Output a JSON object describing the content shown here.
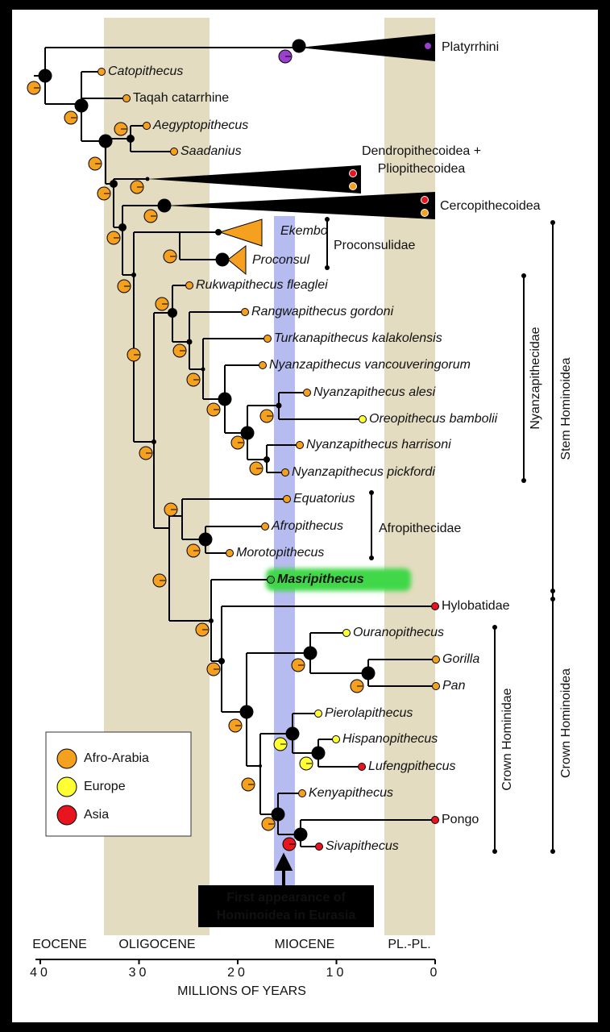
{
  "taxa": [
    "Platyrrhini",
    "Catopithecus",
    "Taqah catarrhine",
    "Aegyptopithecus",
    "Saadanius",
    "Dendropithecoidea +",
    "Pliopithecoidea",
    "Cercopithecoidea",
    "Ekembo",
    "Proconsul",
    "Rukwapithecus fleaglei",
    "Rangwapithecus gordoni",
    "Turkanapithecus kalakolensis",
    "Nyanzapithecus vancouveringorum",
    "Nyanzapithecus alesi",
    "Oreopithecus bambolii",
    "Nyanzapithecus harrisoni",
    "Nyanzapithecus pickfordi",
    "Equatorius",
    "Afropithecus",
    "Morotopithecus",
    "Masripithecus",
    "Hylobatidae",
    "Ouranopithecus",
    "Gorilla",
    "Pan",
    "Pierolapithecus",
    "Hispanopithecus",
    "Lufengpithecus",
    "Kenyapithecus",
    "Pongo",
    "Sivapithecus"
  ],
  "clades": [
    "Proconsulidae",
    "Afropithecidae"
  ],
  "groups": [
    "Nyanzapithecidae",
    "Stem Hominoidea",
    "Crown Hominidae",
    "Crown Hominoidea"
  ],
  "legend": [
    "Afro-Arabia",
    "Europe",
    "Asia"
  ],
  "callout": [
    "First appearance of",
    "Hominoidea in Eurasia"
  ],
  "epochs": [
    "EOCENE",
    "OLIGOCENE",
    "MIOCENE",
    "PL.-PL."
  ],
  "axis": {
    "title": "MILLIONS OF YEARS",
    "ticks": [
      40,
      30,
      20,
      10,
      0
    ]
  }
}
